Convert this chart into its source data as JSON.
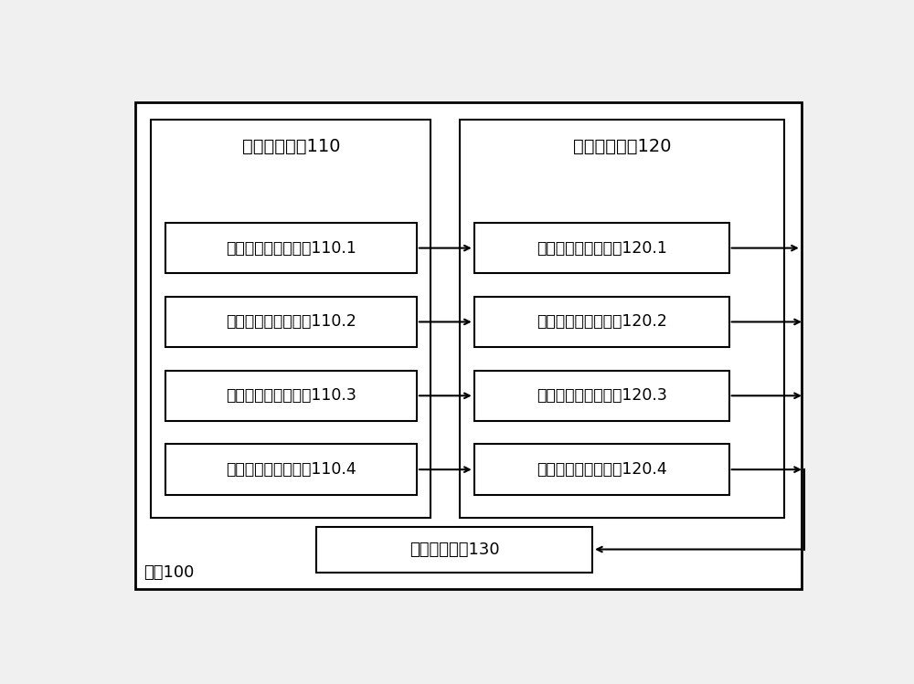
{
  "bg_color": "#f0f0f0",
  "box_bg": "#ffffff",
  "box_edge": "#000000",
  "system_label": "系统100",
  "left_group_label": "数据采集模块110",
  "right_group_label": "数据分析模块120",
  "left_boxes": [
    "第一数据采集子模块110.1",
    "第二数据采集子模块110.2",
    "第三数据采集子模块110.3",
    "第四数据采集子模块110.4"
  ],
  "right_boxes": [
    "第一数据分析子模块120.1",
    "第二数据分析子模块120.2",
    "第三数据分析子模块120.3",
    "第四数据分析子模块120.4"
  ],
  "bottom_box_label": "项目规划模块130",
  "font_size": 13,
  "label_font_size": 14
}
